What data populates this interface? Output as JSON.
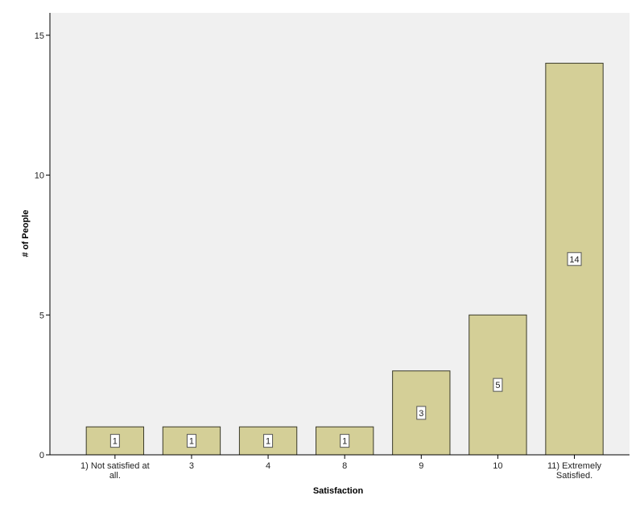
{
  "chart_data": {
    "type": "bar",
    "title": "",
    "xlabel": "Satisfaction",
    "ylabel": "# of People",
    "categories": [
      [
        "1) Not satisfied at",
        "all."
      ],
      [
        "3"
      ],
      [
        "4"
      ],
      [
        "8"
      ],
      [
        "9"
      ],
      [
        "10"
      ],
      [
        "11) Extremely",
        "Satisfied."
      ]
    ],
    "values": [
      1,
      1,
      1,
      1,
      3,
      5,
      14
    ],
    "data_labels": [
      "1",
      "1",
      "1",
      "1",
      "3",
      "5",
      "14"
    ],
    "ylim": [
      0,
      15.8
    ],
    "yticks": [
      0,
      5,
      10,
      15
    ],
    "ytick_labels": [
      "0",
      "5",
      "10",
      "15"
    ],
    "grid": false,
    "legend": "none",
    "colors": {
      "plot_background": "#f0f0f0",
      "bar_fill": "#d4cf97",
      "bar_stroke": "#3a3a2a",
      "axis": "#000000"
    }
  }
}
